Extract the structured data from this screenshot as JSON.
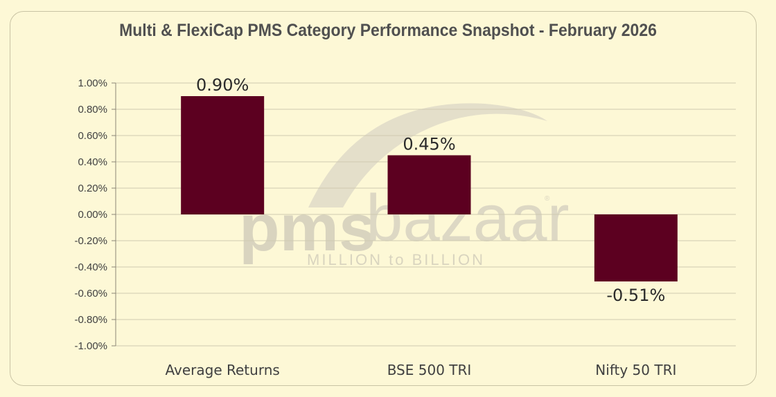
{
  "chart_data": {
    "type": "bar",
    "title": "Multi & FlexiCap PMS Category Performance Snapshot - February 2026",
    "categories": [
      "Average Returns",
      "BSE 500 TRI",
      "Nifty 50 TRI"
    ],
    "values": [
      0.9,
      0.45,
      -0.51
    ],
    "data_labels": [
      "0.90%",
      "0.45%",
      "-0.51%"
    ],
    "ylim": [
      -1.0,
      1.0
    ],
    "y_ticks": [
      1.0,
      0.8,
      0.6,
      0.4,
      0.2,
      0.0,
      -0.2,
      -0.4,
      -0.6,
      -0.8,
      -1.0
    ],
    "y_tick_labels": [
      "1.00%",
      "0.80%",
      "0.60%",
      "0.40%",
      "0.20%",
      "0.00%",
      "-0.20%",
      "-0.40%",
      "-0.60%",
      "-0.80%",
      "-1.00%"
    ],
    "xlabel": "",
    "ylabel": "",
    "grid": true,
    "bar_color": "#5c0020",
    "grid_color": "#cfcab0"
  },
  "watermark": {
    "brand_bold": "pms",
    "brand_light": "bazaar",
    "registered_mark": "®",
    "tagline": "MILLION to BILLION"
  }
}
